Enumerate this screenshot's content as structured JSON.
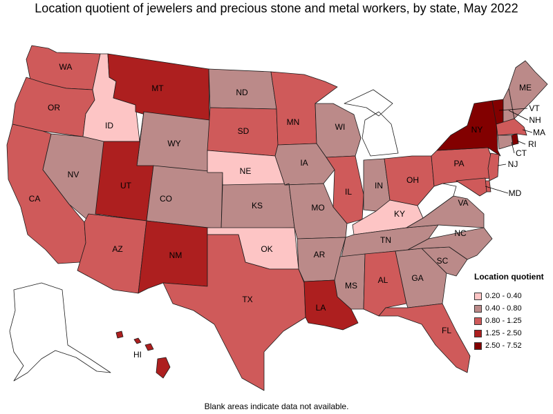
{
  "title": "Location quotient of jewelers and precious stone and metal workers, by state, May 2022",
  "footnote": "Blank areas indicate data not available.",
  "legend": {
    "title": "Location quotient",
    "bins": [
      {
        "label": "0.20 - 0.40",
        "color": "#fdc5c5"
      },
      {
        "label": "0.40 - 0.80",
        "color": "#bb8a89"
      },
      {
        "label": "0.80 - 1.25",
        "color": "#cf5a5a"
      },
      {
        "label": "1.25 - 2.50",
        "color": "#ad1f1f"
      },
      {
        "label": "2.50 - 7.52",
        "color": "#820000"
      }
    ]
  },
  "states": [
    {
      "abbr": "WA",
      "bin": 2
    },
    {
      "abbr": "OR",
      "bin": 2
    },
    {
      "abbr": "CA",
      "bin": 2
    },
    {
      "abbr": "ID",
      "bin": 0
    },
    {
      "abbr": "NV",
      "bin": 1
    },
    {
      "abbr": "MT",
      "bin": 3
    },
    {
      "abbr": "WY",
      "bin": 1
    },
    {
      "abbr": "UT",
      "bin": 3
    },
    {
      "abbr": "AZ",
      "bin": 2
    },
    {
      "abbr": "CO",
      "bin": 1
    },
    {
      "abbr": "NM",
      "bin": 3
    },
    {
      "abbr": "ND",
      "bin": 1
    },
    {
      "abbr": "SD",
      "bin": 2
    },
    {
      "abbr": "NE",
      "bin": 0
    },
    {
      "abbr": "KS",
      "bin": 1
    },
    {
      "abbr": "OK",
      "bin": 0
    },
    {
      "abbr": "TX",
      "bin": 2
    },
    {
      "abbr": "MN",
      "bin": 2
    },
    {
      "abbr": "IA",
      "bin": 1
    },
    {
      "abbr": "MO",
      "bin": 1
    },
    {
      "abbr": "AR",
      "bin": 1
    },
    {
      "abbr": "LA",
      "bin": 3
    },
    {
      "abbr": "WI",
      "bin": 1
    },
    {
      "abbr": "IL",
      "bin": 2
    },
    {
      "abbr": "MI",
      "bin": null
    },
    {
      "abbr": "IN",
      "bin": 1
    },
    {
      "abbr": "OH",
      "bin": 2
    },
    {
      "abbr": "KY",
      "bin": 0
    },
    {
      "abbr": "TN",
      "bin": 1
    },
    {
      "abbr": "MS",
      "bin": 1
    },
    {
      "abbr": "AL",
      "bin": 2
    },
    {
      "abbr": "GA",
      "bin": 1
    },
    {
      "abbr": "FL",
      "bin": 2
    },
    {
      "abbr": "SC",
      "bin": 1
    },
    {
      "abbr": "NC",
      "bin": 1
    },
    {
      "abbr": "VA",
      "bin": 1
    },
    {
      "abbr": "WV",
      "bin": null
    },
    {
      "abbr": "PA",
      "bin": 2
    },
    {
      "abbr": "NY",
      "bin": 4
    },
    {
      "abbr": "VT",
      "bin": 4
    },
    {
      "abbr": "NH",
      "bin": 1
    },
    {
      "abbr": "ME",
      "bin": 1
    },
    {
      "abbr": "MA",
      "bin": 2
    },
    {
      "abbr": "RI",
      "bin": 4
    },
    {
      "abbr": "CT",
      "bin": 1
    },
    {
      "abbr": "NJ",
      "bin": 2
    },
    {
      "abbr": "DE",
      "bin": 2
    },
    {
      "abbr": "MD",
      "bin": 2
    },
    {
      "abbr": "AK",
      "bin": null
    },
    {
      "abbr": "HI",
      "bin": 3
    }
  ]
}
